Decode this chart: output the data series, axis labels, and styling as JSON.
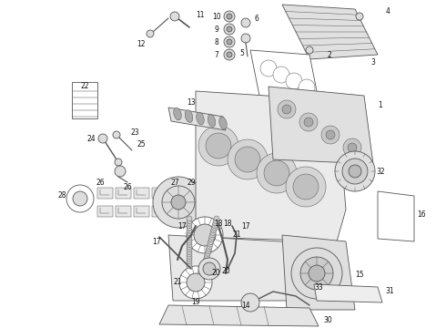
{
  "background_color": "#ffffff",
  "fig_width": 4.9,
  "fig_height": 3.6,
  "dpi": 100,
  "ec": "#555555",
  "fc_light": "#f0f0f0",
  "fc_mid": "#e0e0e0",
  "fc_dark": "#cccccc",
  "label_fontsize": 5.5,
  "label_color": "#111111",
  "lw_main": 0.6,
  "lw_thin": 0.35
}
